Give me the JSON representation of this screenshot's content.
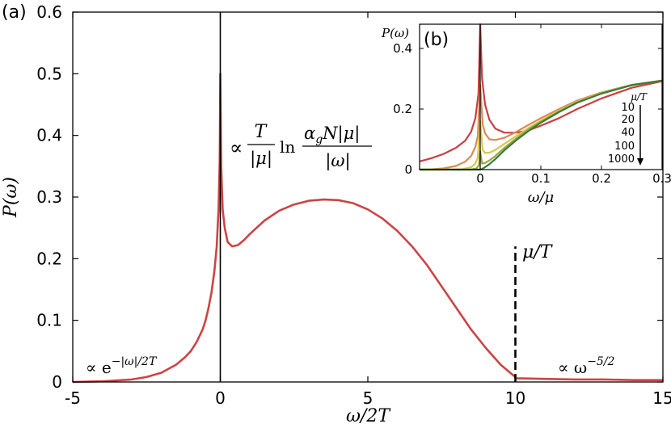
{
  "chart_data": [
    {
      "panel_label": "(a)",
      "type": "line",
      "xlabel": "ω/2T",
      "ylabel": "P(ω)",
      "xlim": [
        -5,
        15
      ],
      "ylim": [
        0,
        0.6
      ],
      "x_ticks": [
        -5,
        0,
        5,
        10,
        15
      ],
      "x_tick_labels": [
        "-5",
        "0",
        "5",
        "10",
        "15"
      ],
      "y_ticks": [
        0,
        0.1,
        0.2,
        0.3,
        0.4,
        0.5,
        0.6
      ],
      "y_tick_labels": [
        "0",
        "0.1",
        "0.2",
        "0.3",
        "0.4",
        "0.5",
        "0.6"
      ],
      "series": [
        {
          "color": "#cc4444",
          "x": [
            -5,
            -4,
            -3,
            -2.5,
            -2,
            -1.5,
            -1.2,
            -1,
            -0.8,
            -0.6,
            -0.5,
            -0.4,
            -0.3,
            -0.2,
            -0.12,
            -0.06,
            -0.02,
            0,
            0.03,
            0.08,
            0.15,
            0.25,
            0.4,
            0.6,
            0.8,
            1.0,
            1.5,
            2.0,
            2.5,
            3.0,
            3.5,
            4.0,
            4.5,
            5.0,
            5.5,
            6.0,
            6.5,
            7.0,
            7.5,
            8.0,
            8.5,
            9.0,
            9.5,
            10.0,
            10.02,
            11,
            12,
            13,
            14,
            15
          ],
          "y": [
            0.0,
            0.001,
            0.004,
            0.008,
            0.015,
            0.028,
            0.04,
            0.05,
            0.065,
            0.085,
            0.1,
            0.12,
            0.145,
            0.18,
            0.22,
            0.28,
            0.36,
            0.5,
            0.35,
            0.28,
            0.25,
            0.227,
            0.22,
            0.222,
            0.23,
            0.24,
            0.262,
            0.278,
            0.288,
            0.294,
            0.296,
            0.295,
            0.29,
            0.28,
            0.265,
            0.245,
            0.22,
            0.19,
            0.155,
            0.12,
            0.085,
            0.055,
            0.028,
            0.008,
            0.006,
            0.005,
            0.004,
            0.004,
            0.003,
            0.003
          ]
        }
      ],
      "annotations": {
        "peak_formula_prefix": "∝",
        "peak_formula_T": "T",
        "peak_formula_mu": "|μ|",
        "peak_formula_ln": "ln",
        "peak_formula_num": "α",
        "peak_formula_num_sub": "g",
        "peak_formula_num_rest": "N|μ|",
        "peak_formula_den": "|ω|",
        "mu_over_T": "μ/T",
        "left_tail_prefix": "∝ e",
        "left_tail_exp": "−|ω|/2T",
        "right_tail_prefix": "∝ ω",
        "right_tail_exp": "−5/2"
      },
      "vertical_lines": [
        {
          "x": 0,
          "style": "solid",
          "color": "#000000",
          "y_top": 0.6
        },
        {
          "x": 10,
          "style": "dashed",
          "color": "#000000",
          "y_top": 0.22
        }
      ]
    },
    {
      "panel_label": "(b)",
      "type": "line",
      "xlabel": "ω/μ",
      "ylabel": "P(ω)",
      "xlim": [
        -0.1,
        0.3
      ],
      "ylim": [
        0,
        0.48
      ],
      "x_ticks": [
        0,
        0.1,
        0.2,
        0.3
      ],
      "x_tick_labels": [
        "0",
        "0.1",
        "0.2",
        "0.3"
      ],
      "y_ticks": [
        0,
        0.2,
        0.4
      ],
      "y_tick_labels": [
        "0",
        "0.2",
        "0.4"
      ],
      "legend_title": "μ/T",
      "legend_labels": [
        "10",
        "20",
        "40",
        "100",
        "1000"
      ],
      "legend_position": "right",
      "series": [
        {
          "color": "#c84040",
          "x": [
            -0.1,
            -0.08,
            -0.06,
            -0.04,
            -0.025,
            -0.015,
            -0.008,
            -0.003,
            0,
            0.003,
            0.008,
            0.015,
            0.025,
            0.04,
            0.06,
            0.08,
            0.1,
            0.13,
            0.16,
            0.2,
            0.25,
            0.3
          ],
          "y": [
            0.027,
            0.038,
            0.052,
            0.072,
            0.095,
            0.125,
            0.17,
            0.25,
            0.48,
            0.3,
            0.215,
            0.165,
            0.135,
            0.122,
            0.122,
            0.13,
            0.145,
            0.17,
            0.2,
            0.235,
            0.27,
            0.292
          ]
        },
        {
          "color": "#dc8a56",
          "x": [
            -0.1,
            -0.08,
            -0.06,
            -0.04,
            -0.025,
            -0.015,
            -0.008,
            -0.004,
            0,
            0.004,
            0.008,
            0.015,
            0.025,
            0.04,
            0.06,
            0.08,
            0.1,
            0.13,
            0.16,
            0.2,
            0.25,
            0.3
          ],
          "y": [
            0.0,
            0.001,
            0.004,
            0.012,
            0.026,
            0.045,
            0.075,
            0.11,
            0.28,
            0.15,
            0.12,
            0.1,
            0.098,
            0.105,
            0.125,
            0.148,
            0.17,
            0.2,
            0.228,
            0.255,
            0.28,
            0.294
          ]
        },
        {
          "color": "#d8c84a",
          "x": [
            -0.1,
            -0.06,
            -0.03,
            -0.015,
            -0.008,
            -0.004,
            0,
            0.004,
            0.008,
            0.015,
            0.025,
            0.04,
            0.06,
            0.08,
            0.1,
            0.13,
            0.16,
            0.2,
            0.25,
            0.3
          ],
          "y": [
            0.0,
            0.0,
            0.001,
            0.008,
            0.02,
            0.04,
            0.16,
            0.065,
            0.055,
            0.056,
            0.065,
            0.085,
            0.112,
            0.138,
            0.162,
            0.195,
            0.224,
            0.253,
            0.279,
            0.294
          ]
        },
        {
          "color": "#9aa83e",
          "x": [
            -0.1,
            -0.04,
            -0.015,
            -0.006,
            -0.002,
            0,
            0.003,
            0.008,
            0.015,
            0.025,
            0.04,
            0.06,
            0.08,
            0.1,
            0.13,
            0.16,
            0.2,
            0.25,
            0.3
          ],
          "y": [
            0.0,
            0.0,
            0.0,
            0.004,
            0.015,
            0.06,
            0.02,
            0.022,
            0.03,
            0.045,
            0.072,
            0.104,
            0.133,
            0.158,
            0.192,
            0.222,
            0.252,
            0.279,
            0.294
          ]
        },
        {
          "color": "#3a7a3a",
          "x": [
            -0.1,
            -0.02,
            -0.005,
            0,
            0.003,
            0.008,
            0.015,
            0.025,
            0.04,
            0.06,
            0.08,
            0.1,
            0.13,
            0.16,
            0.2,
            0.25,
            0.3
          ],
          "y": [
            0.0,
            0.0,
            0.0,
            0.0,
            0.002,
            0.008,
            0.018,
            0.035,
            0.064,
            0.098,
            0.128,
            0.155,
            0.19,
            0.221,
            0.251,
            0.279,
            0.294
          ]
        }
      ],
      "vertical_lines": [
        {
          "x": 0,
          "style": "solid",
          "color": "#000000",
          "y_top": 0.48
        }
      ]
    }
  ]
}
